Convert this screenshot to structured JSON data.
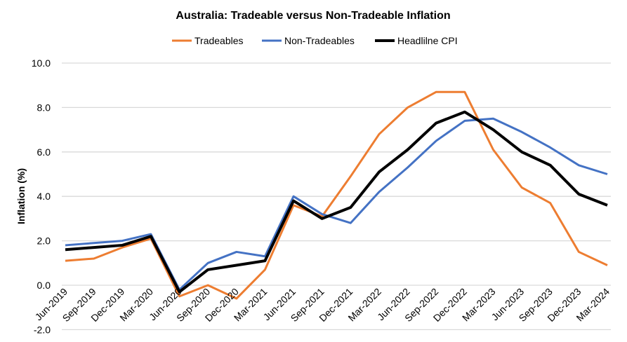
{
  "chart_data": {
    "type": "line",
    "title": "Australia: Tradeable versus Non-Tradeable Inflation",
    "xlabel": "",
    "ylabel": "Inflation (%)",
    "ylim": [
      -2,
      10
    ],
    "yticks": [
      "-2.0",
      "0.0",
      "2.0",
      "4.0",
      "6.0",
      "8.0",
      "10.0"
    ],
    "ytick_values": [
      -2,
      0,
      2,
      4,
      6,
      8,
      10
    ],
    "grid": true,
    "legend_position": "top-center",
    "categories": [
      "Jun-2019",
      "Sep-2019",
      "Dec-2019",
      "Mar-2020",
      "Jun-2020",
      "Sep-2020",
      "Dec-2020",
      "Mar-2021",
      "Jun-2021",
      "Sep-2021",
      "Dec-2021",
      "Mar-2022",
      "Jun-2022",
      "Sep-2022",
      "Dec-2022",
      "Mar-2023",
      "Jun-2023",
      "Sep-2023",
      "Dec-2023",
      "Mar-2024"
    ],
    "series": [
      {
        "name": "Tradeables",
        "color": "#ED7D31",
        "values": [
          1.1,
          1.2,
          1.7,
          2.1,
          -0.5,
          0.0,
          -0.6,
          0.7,
          3.6,
          3.1,
          4.9,
          6.8,
          8.0,
          8.7,
          8.7,
          6.1,
          4.4,
          3.7,
          1.5,
          0.9
        ]
      },
      {
        "name": "Non-Tradeables",
        "color": "#4472C4",
        "values": [
          1.8,
          1.9,
          2.0,
          2.3,
          -0.2,
          1.0,
          1.5,
          1.3,
          4.0,
          3.2,
          2.8,
          4.2,
          5.3,
          6.5,
          7.4,
          7.5,
          6.9,
          6.2,
          5.4,
          5.0
        ]
      },
      {
        "name": "Headlilne CPI",
        "color": "#000000",
        "values": [
          1.6,
          1.7,
          1.8,
          2.2,
          -0.3,
          0.7,
          0.9,
          1.1,
          3.8,
          3.0,
          3.5,
          5.1,
          6.1,
          7.3,
          7.8,
          7.0,
          6.0,
          5.4,
          4.1,
          3.6
        ]
      }
    ]
  }
}
